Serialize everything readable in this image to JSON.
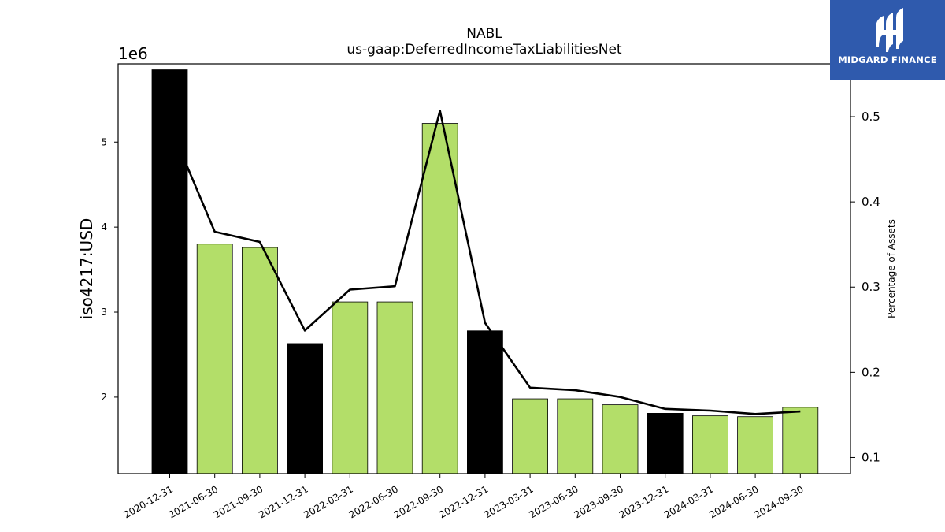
{
  "chart_data": {
    "type": "bar",
    "title": "NABL",
    "subtitle": "us-gaap:DeferredIncomeTaxLiabilitiesNet",
    "ylabel": "iso4217:USD",
    "y_offset_label": "1e6",
    "y2label": "Percentage of Assets",
    "categories": [
      "2020-12-31",
      "2021-06-30",
      "2021-09-30",
      "2021-12-31",
      "2022-03-31",
      "2022-06-30",
      "2022-09-30",
      "2022-12-31",
      "2023-03-31",
      "2023-06-30",
      "2023-09-30",
      "2023-12-31",
      "2024-03-31",
      "2024-06-30",
      "2024-09-30"
    ],
    "series": [
      {
        "type": "bar",
        "values": [
          5850000,
          3800000,
          3760000,
          2630000,
          3120000,
          3120000,
          5220000,
          2780000,
          1980000,
          1980000,
          1910000,
          1810000,
          1780000,
          1770000,
          1880000
        ],
        "colors": [
          "#000000",
          "#b3de69",
          "#b3de69",
          "#000000",
          "#b3de69",
          "#b3de69",
          "#b3de69",
          "#000000",
          "#b3de69",
          "#b3de69",
          "#b3de69",
          "#000000",
          "#b3de69",
          "#b3de69",
          "#b3de69"
        ]
      },
      {
        "type": "line",
        "axis": "right",
        "color": "#000000",
        "values": [
          0.49,
          0.365,
          0.353,
          0.249,
          0.297,
          0.301,
          0.507,
          0.258,
          0.182,
          0.179,
          0.171,
          0.157,
          0.155,
          0.151,
          0.154
        ]
      }
    ],
    "ylim": [
      1100000,
      5920000
    ],
    "yticks": [
      2000000,
      3000000,
      4000000,
      5000000
    ],
    "ytick_labels": [
      "2",
      "3",
      "4",
      "5"
    ],
    "y2lim": [
      0.081,
      0.562
    ],
    "y2ticks": [
      0.1,
      0.2,
      0.3,
      0.4,
      0.5
    ],
    "y2tick_labels": [
      "0.1",
      "0.2",
      "0.3",
      "0.4",
      "0.5"
    ],
    "grid": false
  },
  "logo": {
    "text": "MIDGARD FINANCE",
    "color": "#2f5aad"
  }
}
